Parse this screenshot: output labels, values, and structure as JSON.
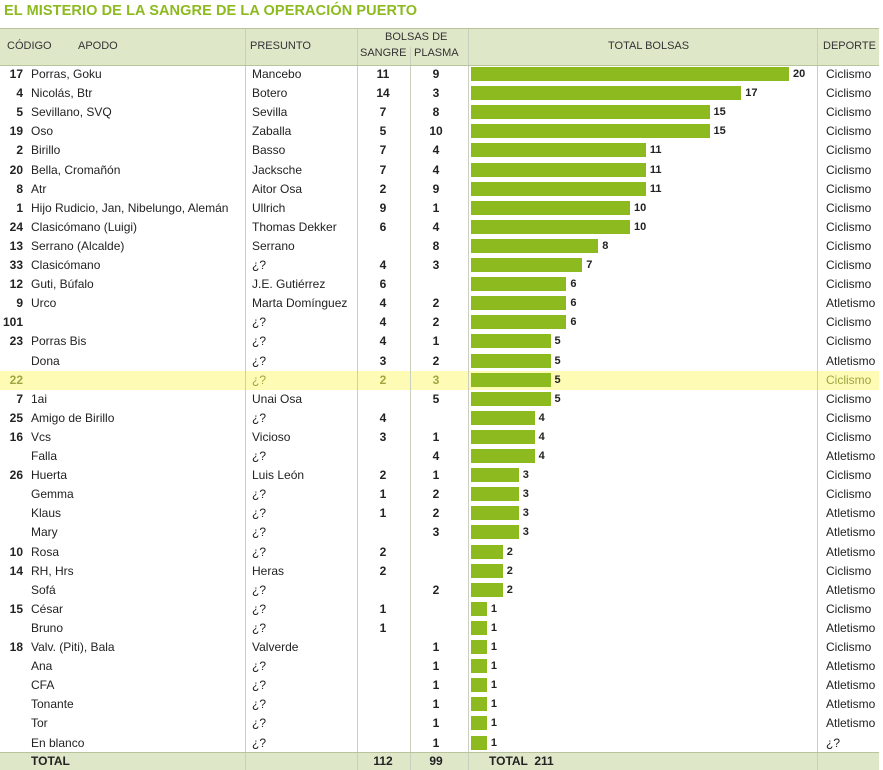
{
  "title": "EL MISTERIO DE LA SANGRE DE LA OPERACIÓN PUERTO",
  "headers": {
    "codigo": "CÓDIGO",
    "apodo": "APODO",
    "presunto": "PRESUNTO",
    "bolsas_de": "BOLSAS DE",
    "sangre": "SANGRE",
    "plasma": "PLASMA",
    "total_bolsas": "TOTAL BOLSAS",
    "deporte": "DEPORTE"
  },
  "colors": {
    "accent": "#8dba1f",
    "header_bg": "#dfe7c9",
    "highlight_bg": "#fefbb5"
  },
  "rows": [
    {
      "code": "17",
      "apodo": "Porras, Goku",
      "presunto": "Mancebo",
      "sangre": "11",
      "plasma": "9",
      "total": "20",
      "deporte": "Ciclismo"
    },
    {
      "code": "4",
      "apodo": "Nicolás, Btr",
      "presunto": "Botero",
      "sangre": "14",
      "plasma": "3",
      "total": "17",
      "deporte": "Ciclismo"
    },
    {
      "code": "5",
      "apodo": "Sevillano, SVQ",
      "presunto": "Sevilla",
      "sangre": "7",
      "plasma": "8",
      "total": "15",
      "deporte": "Ciclismo"
    },
    {
      "code": "19",
      "apodo": "Oso",
      "presunto": "Zaballa",
      "sangre": "5",
      "plasma": "10",
      "total": "15",
      "deporte": "Ciclismo"
    },
    {
      "code": "2",
      "apodo": "Birillo",
      "presunto": "Basso",
      "sangre": "7",
      "plasma": "4",
      "total": "11",
      "deporte": "Ciclismo"
    },
    {
      "code": "20",
      "apodo": "Bella, Cromañón",
      "presunto": "Jacksche",
      "sangre": "7",
      "plasma": "4",
      "total": "11",
      "deporte": "Ciclismo"
    },
    {
      "code": "8",
      "apodo": "Atr",
      "presunto": "Aitor Osa",
      "sangre": "2",
      "plasma": "9",
      "total": "11",
      "deporte": "Ciclismo"
    },
    {
      "code": "1",
      "apodo": "Hijo Rudicio, Jan, Nibelungo, Alemán",
      "presunto": "Ullrich",
      "sangre": "9",
      "plasma": "1",
      "total": "10",
      "deporte": "Ciclismo"
    },
    {
      "code": "24",
      "apodo": "Clasicómano (Luigi)",
      "presunto": "Thomas Dekker",
      "sangre": "6",
      "plasma": "4",
      "total": "10",
      "deporte": "Ciclismo"
    },
    {
      "code": "13",
      "apodo": "Serrano (Alcalde)",
      "presunto": "Serrano",
      "sangre": "",
      "plasma": "8",
      "total": "8",
      "deporte": "Ciclismo"
    },
    {
      "code": "33",
      "apodo": "Clasicómano",
      "presunto": "¿?",
      "sangre": "4",
      "plasma": "3",
      "total": "7",
      "deporte": "Ciclismo"
    },
    {
      "code": "12",
      "apodo": "Guti, Búfalo",
      "presunto": "J.E. Gutiérrez",
      "sangre": "6",
      "plasma": "",
      "total": "6",
      "deporte": "Ciclismo"
    },
    {
      "code": "9",
      "apodo": "Urco",
      "presunto": "Marta Domínguez",
      "sangre": "4",
      "plasma": "2",
      "total": "6",
      "deporte": "Atletismo"
    },
    {
      "code": "101",
      "apodo": "",
      "presunto": "¿?",
      "sangre": "4",
      "plasma": "2",
      "total": "6",
      "deporte": "Ciclismo"
    },
    {
      "code": "23",
      "apodo": "Porras Bis",
      "presunto": "¿?",
      "sangre": "4",
      "plasma": "1",
      "total": "5",
      "deporte": "Ciclismo"
    },
    {
      "code": "",
      "apodo": "Dona",
      "presunto": "¿?",
      "sangre": "3",
      "plasma": "2",
      "total": "5",
      "deporte": "Atletismo"
    },
    {
      "code": "22",
      "apodo": "",
      "presunto": "¿?",
      "sangre": "2",
      "plasma": "3",
      "total": "5",
      "deporte": "Ciclismo",
      "highlight": true
    },
    {
      "code": "7",
      "apodo": "1ai",
      "presunto": "Unai Osa",
      "sangre": "",
      "plasma": "5",
      "total": "5",
      "deporte": "Ciclismo"
    },
    {
      "code": "25",
      "apodo": "Amigo de Birillo",
      "presunto": "¿?",
      "sangre": "4",
      "plasma": "",
      "total": "4",
      "deporte": "Ciclismo"
    },
    {
      "code": "16",
      "apodo": "Vcs",
      "presunto": "Vicioso",
      "sangre": "3",
      "plasma": "1",
      "total": "4",
      "deporte": "Ciclismo"
    },
    {
      "code": "",
      "apodo": "Falla",
      "presunto": "¿?",
      "sangre": "",
      "plasma": "4",
      "total": "4",
      "deporte": "Atletismo"
    },
    {
      "code": "26",
      "apodo": "Huerta",
      "presunto": "Luis León",
      "sangre": "2",
      "plasma": "1",
      "total": "3",
      "deporte": "Ciclismo"
    },
    {
      "code": "",
      "apodo": "Gemma",
      "presunto": "¿?",
      "sangre": "1",
      "plasma": "2",
      "total": "3",
      "deporte": "Ciclismo"
    },
    {
      "code": "",
      "apodo": "Klaus",
      "presunto": "¿?",
      "sangre": "1",
      "plasma": "2",
      "total": "3",
      "deporte": "Atletismo"
    },
    {
      "code": "",
      "apodo": "Mary",
      "presunto": "¿?",
      "sangre": "",
      "plasma": "3",
      "total": "3",
      "deporte": "Atletismo"
    },
    {
      "code": "10",
      "apodo": "Rosa",
      "presunto": "¿?",
      "sangre": "2",
      "plasma": "",
      "total": "2",
      "deporte": "Atletismo"
    },
    {
      "code": "14",
      "apodo": "RH, Hrs",
      "presunto": "Heras",
      "sangre": "2",
      "plasma": "",
      "total": "2",
      "deporte": "Ciclismo"
    },
    {
      "code": "",
      "apodo": "Sofá",
      "presunto": "¿?",
      "sangre": "",
      "plasma": "2",
      "total": "2",
      "deporte": "Atletismo"
    },
    {
      "code": "15",
      "apodo": "César",
      "presunto": "¿?",
      "sangre": "1",
      "plasma": "",
      "total": "1",
      "deporte": "Ciclismo"
    },
    {
      "code": "",
      "apodo": "Bruno",
      "presunto": "¿?",
      "sangre": "1",
      "plasma": "",
      "total": "1",
      "deporte": "Atletismo"
    },
    {
      "code": "18",
      "apodo": "Valv. (Piti), Bala",
      "presunto": "Valverde",
      "sangre": "",
      "plasma": "1",
      "total": "1",
      "deporte": "Ciclismo"
    },
    {
      "code": "",
      "apodo": "Ana",
      "presunto": "¿?",
      "sangre": "",
      "plasma": "1",
      "total": "1",
      "deporte": "Atletismo"
    },
    {
      "code": "",
      "apodo": "CFA",
      "presunto": "¿?",
      "sangre": "",
      "plasma": "1",
      "total": "1",
      "deporte": "Atletismo"
    },
    {
      "code": "",
      "apodo": "Tonante",
      "presunto": "¿?",
      "sangre": "",
      "plasma": "1",
      "total": "1",
      "deporte": "Atletismo"
    },
    {
      "code": "",
      "apodo": "Tor",
      "presunto": "¿?",
      "sangre": "",
      "plasma": "1",
      "total": "1",
      "deporte": "Atletismo"
    },
    {
      "code": "",
      "apodo": "En blanco",
      "presunto": "¿?",
      "sangre": "",
      "plasma": "1",
      "total": "1",
      "deporte": "¿?"
    }
  ],
  "totals": {
    "label": "TOTAL",
    "sangre": "112",
    "plasma": "99",
    "total_label": "TOTAL  211"
  },
  "chart_data": {
    "type": "bar",
    "title": "EL MISTERIO DE LA SANGRE DE LA OPERACIÓN PUERTO",
    "value_label": "TOTAL BOLSAS",
    "orientation": "horizontal",
    "xlim": [
      0,
      20
    ],
    "categories": [
      "Porras, Goku",
      "Nicolás, Btr",
      "Sevillano, SVQ",
      "Oso",
      "Birillo",
      "Bella, Cromañón",
      "Atr",
      "Hijo Rudicio, Jan, Nibelungo, Alemán",
      "Clasicómano (Luigi)",
      "Serrano (Alcalde)",
      "Clasicómano",
      "Guti, Búfalo",
      "Urco",
      "101",
      "Porras Bis",
      "Dona",
      "22",
      "1ai",
      "Amigo de Birillo",
      "Vcs",
      "Falla",
      "Huerta",
      "Gemma",
      "Klaus",
      "Mary",
      "Rosa",
      "RH, Hrs",
      "Sofá",
      "César",
      "Bruno",
      "Valv. (Piti), Bala",
      "Ana",
      "CFA",
      "Tonante",
      "Tor",
      "En blanco"
    ],
    "values": [
      20,
      17,
      15,
      15,
      11,
      11,
      11,
      10,
      10,
      8,
      7,
      6,
      6,
      6,
      5,
      5,
      5,
      5,
      4,
      4,
      4,
      3,
      3,
      3,
      3,
      2,
      2,
      2,
      1,
      1,
      1,
      1,
      1,
      1,
      1,
      1
    ]
  }
}
